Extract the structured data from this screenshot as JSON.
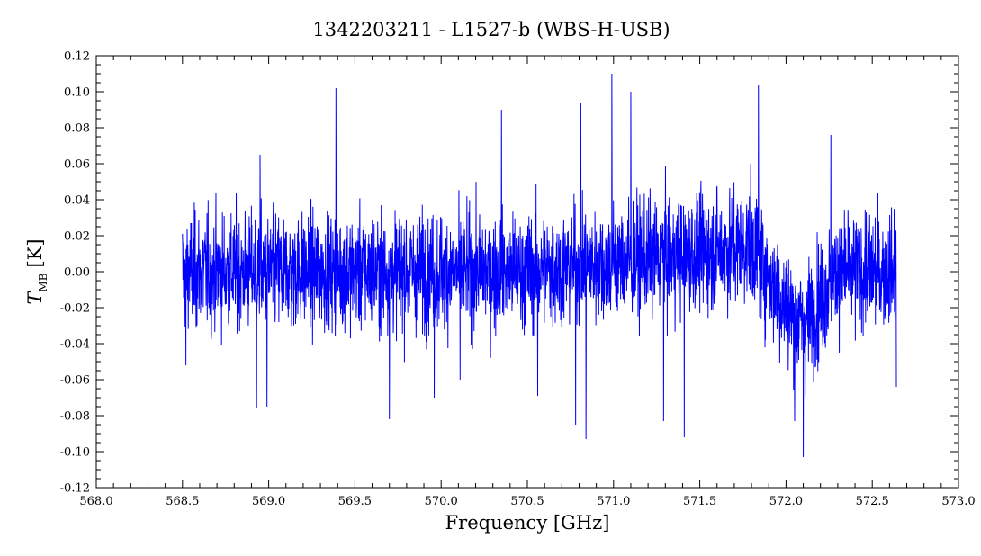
{
  "chart_data": {
    "type": "line",
    "title": "1342203211 - L1527-b (WBS-H-USB)",
    "xlabel": "Frequency [GHz]",
    "ylabel_main": "T",
    "ylabel_sub": "MB",
    "ylabel_unit": "[K]",
    "xlim": [
      568.0,
      573.0
    ],
    "ylim": [
      -0.12,
      0.12
    ],
    "x_ticks": [
      "568.0",
      "568.5",
      "569.0",
      "569.5",
      "570.0",
      "570.5",
      "571.0",
      "571.5",
      "572.0",
      "572.5",
      "573.0"
    ],
    "y_ticks": [
      "0.12",
      "0.10",
      "0.08",
      "0.06",
      "0.04",
      "0.02",
      "0.00",
      "-0.02",
      "-0.04",
      "-0.06",
      "-0.08",
      "-0.10",
      "-0.12"
    ],
    "grid": false,
    "series": [
      {
        "color": "#0000ff",
        "x_range": [
          568.5,
          572.64
        ],
        "noise_rms": 0.022,
        "baseline_envelope": [
          [
            568.5,
            0.0
          ],
          [
            569.0,
            0.0
          ],
          [
            569.5,
            0.0
          ],
          [
            570.0,
            0.0
          ],
          [
            570.5,
            0.0
          ],
          [
            571.0,
            0.005
          ],
          [
            571.5,
            0.01
          ],
          [
            571.8,
            0.015
          ],
          [
            572.0,
            -0.02
          ],
          [
            572.1,
            -0.03
          ],
          [
            572.3,
            0.0
          ],
          [
            572.64,
            0.0
          ]
        ],
        "spikes": [
          [
            568.52,
            -0.052
          ],
          [
            568.93,
            -0.076
          ],
          [
            568.95,
            0.065
          ],
          [
            568.99,
            -0.075
          ],
          [
            569.39,
            0.102
          ],
          [
            569.7,
            -0.082
          ],
          [
            569.96,
            -0.07
          ],
          [
            570.11,
            -0.06
          ],
          [
            570.35,
            0.09
          ],
          [
            570.56,
            -0.069
          ],
          [
            570.78,
            -0.085
          ],
          [
            570.81,
            0.094
          ],
          [
            570.84,
            -0.093
          ],
          [
            570.99,
            0.11
          ],
          [
            571.1,
            0.1
          ],
          [
            571.29,
            -0.083
          ],
          [
            571.41,
            -0.092
          ],
          [
            571.84,
            0.104
          ],
          [
            572.05,
            -0.083
          ],
          [
            572.1,
            -0.103
          ],
          [
            572.26,
            0.076
          ],
          [
            572.64,
            -0.064
          ]
        ]
      }
    ]
  }
}
